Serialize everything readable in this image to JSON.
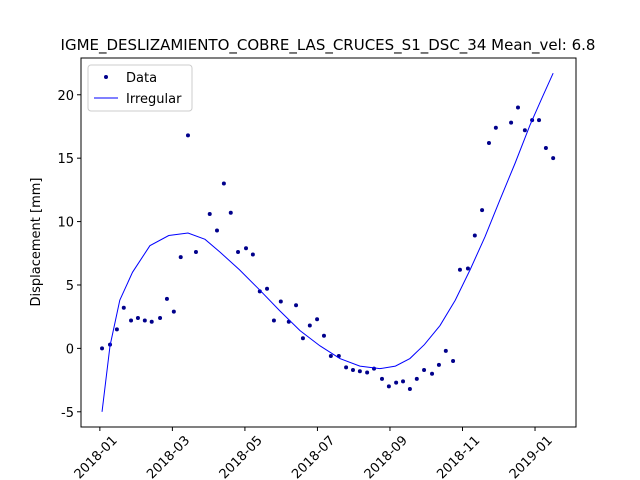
{
  "chart_data": {
    "type": "line",
    "title": "IGME_DESLIZAMIENTO_COBRE_LAS_CRUCES_S1_DSC_34    Mean_vel: 6.8",
    "ylabel": "Displacement [mm]",
    "xlim": [
      -0.52,
      13.13
    ],
    "ylim": [
      -6.2,
      22.9
    ],
    "xticks": [
      {
        "value": 0,
        "label": "2018-01"
      },
      {
        "value": 2,
        "label": "2018-03"
      },
      {
        "value": 4,
        "label": "2018-05"
      },
      {
        "value": 6,
        "label": "2018-07"
      },
      {
        "value": 8,
        "label": "2018-09"
      },
      {
        "value": 10,
        "label": "2018-11"
      },
      {
        "value": 12,
        "label": "2019-01"
      }
    ],
    "yticks": [
      -5,
      0,
      5,
      10,
      15,
      20
    ],
    "legend": "upper left",
    "series": [
      {
        "name": "Data",
        "color": "#00008b",
        "style": "markers",
        "x": [
          0.06,
          0.28,
          0.47,
          0.66,
          0.86,
          1.05,
          1.24,
          1.43,
          1.66,
          1.85,
          2.04,
          2.23,
          2.43,
          2.65,
          3.03,
          3.23,
          3.42,
          3.61,
          3.81,
          4.03,
          4.22,
          4.41,
          4.61,
          4.8,
          4.99,
          5.21,
          5.41,
          5.6,
          5.79,
          5.99,
          6.18,
          6.37,
          6.59,
          6.79,
          6.98,
          7.17,
          7.37,
          7.56,
          7.78,
          7.97,
          8.17,
          8.36,
          8.55,
          8.74,
          8.94,
          9.16,
          9.35,
          9.54,
          9.74,
          9.93,
          10.15,
          10.34,
          10.54,
          10.73,
          10.92,
          11.34,
          11.53,
          11.72,
          11.92,
          12.11,
          12.3,
          12.5
        ],
        "values": [
          0,
          0.3,
          1.5,
          3.2,
          2.2,
          2.4,
          2.2,
          2.1,
          2.4,
          3.9,
          2.9,
          7.2,
          16.8,
          7.6,
          10.6,
          9.3,
          13.0,
          10.7,
          7.6,
          7.9,
          7.4,
          4.5,
          4.7,
          2.2,
          3.7,
          2.1,
          3.4,
          0.8,
          1.8,
          2.3,
          1.0,
          -0.6,
          -0.6,
          -1.5,
          -1.7,
          -1.8,
          -1.9,
          -1.6,
          -2.4,
          -3.0,
          -2.7,
          -2.6,
          -3.2,
          -2.4,
          -1.7,
          -2.0,
          -1.3,
          -0.2,
          -1.0,
          6.2,
          6.3,
          8.9,
          10.9,
          16.2,
          17.4,
          17.8,
          19.0,
          17.2,
          18.0,
          18.0,
          15.8,
          15.0
        ]
      },
      {
        "name": "Irregular",
        "color": "#0000ff",
        "style": "line",
        "x": [
          0.06,
          0.28,
          0.55,
          0.9,
          1.38,
          1.9,
          2.43,
          2.9,
          3.31,
          3.85,
          4.41,
          4.95,
          5.52,
          6.07,
          6.62,
          7.17,
          7.72,
          8.15,
          8.55,
          8.95,
          9.38,
          9.8,
          10.21,
          10.62,
          11.03,
          11.45,
          11.86,
          12.2,
          12.5
        ],
        "values": [
          -5,
          0.2,
          3.8,
          6.0,
          8.1,
          8.9,
          9.1,
          8.6,
          7.6,
          6.2,
          4.6,
          3.0,
          1.4,
          0.2,
          -0.8,
          -1.4,
          -1.6,
          -1.4,
          -0.8,
          0.3,
          1.8,
          3.8,
          6.2,
          8.8,
          11.7,
          14.6,
          17.6,
          19.8,
          21.7
        ]
      }
    ]
  }
}
